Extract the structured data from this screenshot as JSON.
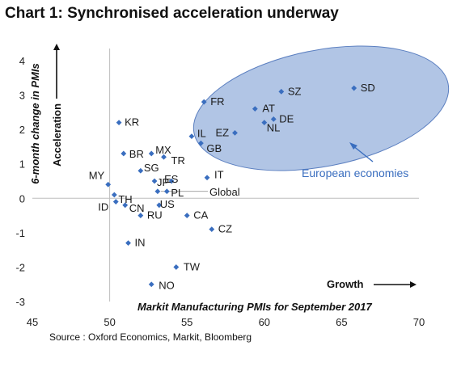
{
  "title": "Chart 1: Synchronised acceleration underway",
  "source": "Source : Oxford Economics, Markit, Bloomberg",
  "chart_data": {
    "type": "scatter",
    "xlabel": "Markit Manufacturing PMIs for September 2017",
    "ylabel": "6-month change in PMIs",
    "xlim": [
      45,
      70
    ],
    "ylim": [
      -3,
      4
    ],
    "xticks": [
      45,
      50,
      55,
      60,
      65,
      70
    ],
    "yticks": [
      -3,
      -2,
      -1,
      0,
      1,
      2,
      3,
      4
    ],
    "grid": false,
    "marker_color": "#3a6ebf",
    "y_direction_label": "Acceleration",
    "x_direction_label": "Growth",
    "cluster": {
      "label": "European economies",
      "fill": "#9bb5de",
      "stroke": "#5b7fc0",
      "label_color": "#3a6ebf"
    },
    "points": [
      {
        "label": "SD",
        "x": 65.8,
        "y": 3.2
      },
      {
        "label": "SZ",
        "x": 61.1,
        "y": 3.1
      },
      {
        "label": "FR",
        "x": 56.1,
        "y": 2.8
      },
      {
        "label": "AT",
        "x": 59.4,
        "y": 2.6
      },
      {
        "label": "DE",
        "x": 60.6,
        "y": 2.3
      },
      {
        "label": "NL",
        "x": 60.0,
        "y": 2.2
      },
      {
        "label": "EZ",
        "x": 58.1,
        "y": 1.9
      },
      {
        "label": "IL",
        "x": 55.3,
        "y": 1.8
      },
      {
        "label": "GB",
        "x": 55.9,
        "y": 1.6
      },
      {
        "label": "KR",
        "x": 50.6,
        "y": 2.2
      },
      {
        "label": "BR",
        "x": 50.9,
        "y": 1.3
      },
      {
        "label": "MX",
        "x": 52.7,
        "y": 1.3
      },
      {
        "label": "TR",
        "x": 53.5,
        "y": 1.2
      },
      {
        "label": "MY",
        "x": 49.9,
        "y": 0.4
      },
      {
        "label": "SG",
        "x": 52.0,
        "y": 0.8
      },
      {
        "label": "JP",
        "x": 52.9,
        "y": 0.5
      },
      {
        "label": "ES",
        "x": 54.0,
        "y": 0.5
      },
      {
        "label": "IT",
        "x": 56.3,
        "y": 0.6
      },
      {
        "label": "TH",
        "x": 50.3,
        "y": 0.1
      },
      {
        "label": "PL",
        "x": 53.7,
        "y": 0.2
      },
      {
        "label": "Global",
        "x": 53.1,
        "y": 0.2
      },
      {
        "label": "CN",
        "x": 51.0,
        "y": -0.2
      },
      {
        "label": "US",
        "x": 53.2,
        "y": -0.2
      },
      {
        "label": "ID",
        "x": 50.4,
        "y": -0.1
      },
      {
        "label": "RU",
        "x": 52.0,
        "y": -0.5
      },
      {
        "label": "CA",
        "x": 55.0,
        "y": -0.5
      },
      {
        "label": "CZ",
        "x": 56.6,
        "y": -0.9
      },
      {
        "label": "IN",
        "x": 51.2,
        "y": -1.3
      },
      {
        "label": "TW",
        "x": 54.3,
        "y": -2.0
      },
      {
        "label": "NO",
        "x": 52.7,
        "y": -2.5
      }
    ]
  }
}
